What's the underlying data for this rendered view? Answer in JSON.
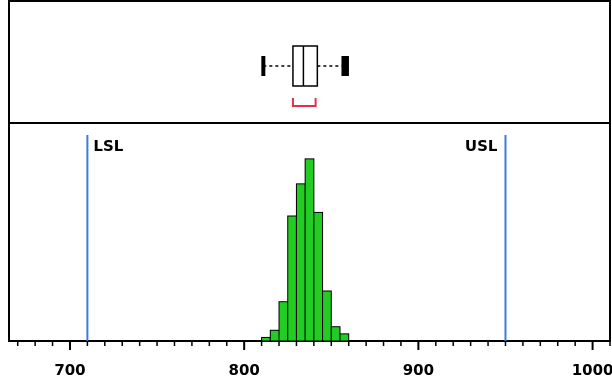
{
  "chart_data": {
    "type": "bar",
    "subtype": "histogram-with-boxplot",
    "x_axis": {
      "min": 665,
      "max": 1010,
      "major_ticks": [
        700,
        800,
        900,
        1000
      ],
      "tick_labels": [
        "700",
        "800",
        "900",
        "1000"
      ]
    },
    "bin_width": 5,
    "bins": [
      {
        "start": 810,
        "end": 815,
        "count": 1
      },
      {
        "start": 815,
        "end": 820,
        "count": 3
      },
      {
        "start": 820,
        "end": 825,
        "count": 11
      },
      {
        "start": 825,
        "end": 830,
        "count": 35
      },
      {
        "start": 830,
        "end": 835,
        "count": 44
      },
      {
        "start": 835,
        "end": 840,
        "count": 51
      },
      {
        "start": 840,
        "end": 845,
        "count": 36
      },
      {
        "start": 845,
        "end": 850,
        "count": 14
      },
      {
        "start": 850,
        "end": 855,
        "count": 4
      },
      {
        "start": 855,
        "end": 860,
        "count": 2
      }
    ],
    "y_max": 56,
    "boxplot": {
      "whisker_low": 811,
      "q1": 828,
      "median": 834,
      "q3": 842,
      "whisker_high": 859,
      "outliers_low": [
        811
      ],
      "outliers_high": [
        857,
        859
      ],
      "shortest_half": [
        828,
        841
      ]
    },
    "spec_limits": [
      {
        "label": "LSL",
        "value": 710
      },
      {
        "label": "USL",
        "value": 950
      }
    ],
    "colors": {
      "bars": "#22cc22",
      "spec_lines": "#3a7be0",
      "shortest_half": "#e03050",
      "axis": "#000000"
    },
    "grid": false
  }
}
